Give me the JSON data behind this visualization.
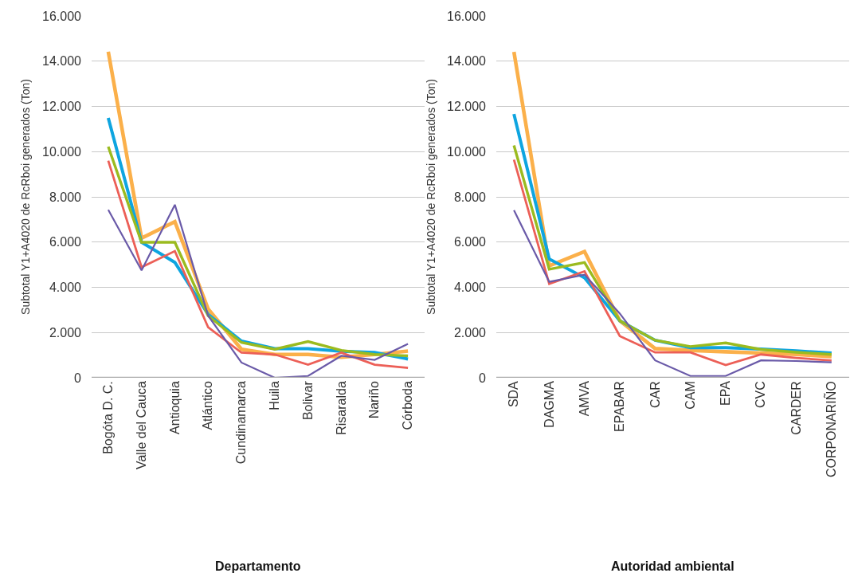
{
  "chart_data": [
    {
      "type": "line",
      "xlabel": "Departamento",
      "ylabel": "Subtotal Y1+A4020 de RcRboi generados (Ton)",
      "categories": [
        "Bogóta D. C.",
        "Valle del Cauca",
        "Antioquia",
        "Atlántico",
        "Cundinamarca",
        "Huila",
        "Bolivar",
        "Risaralda",
        "Nariño",
        "Córboda"
      ],
      "series": [
        {
          "color": "#fbb04a",
          "values": [
            14420,
            6170,
            6900,
            3040,
            1260,
            1030,
            1030,
            910,
            1030,
            1180
          ]
        },
        {
          "color": "#0ea5e0",
          "values": [
            11490,
            5990,
            5100,
            2800,
            1620,
            1290,
            1290,
            1170,
            1120,
            830
          ]
        },
        {
          "color": "#9bbb1f",
          "values": [
            10220,
            5990,
            5990,
            2740,
            1560,
            1260,
            1600,
            1210,
            1030,
            970
          ]
        },
        {
          "color": "#ec5f57",
          "values": [
            9600,
            4890,
            5600,
            2230,
            1110,
            1030,
            580,
            1110,
            580,
            440
          ]
        },
        {
          "color": "#6a5aa8",
          "values": [
            7430,
            4750,
            7650,
            2740,
            670,
            0,
            80,
            970,
            790,
            1500
          ]
        }
      ],
      "ylim": [
        0,
        16000
      ],
      "yticks": [
        {
          "value": 0,
          "label": "0"
        },
        {
          "value": 2000,
          "label": "2.000"
        },
        {
          "value": 4000,
          "label": "4.000"
        },
        {
          "value": 6000,
          "label": "6.000"
        },
        {
          "value": 8000,
          "label": "8.000"
        },
        {
          "value": 10000,
          "label": "10.000"
        },
        {
          "value": 12000,
          "label": "12.000"
        },
        {
          "value": 14000,
          "label": "14.000"
        },
        {
          "value": 16000,
          "label": "16.000"
        }
      ],
      "grid": "y",
      "marker": "none",
      "line_style": "solid"
    },
    {
      "type": "line",
      "xlabel": "Autoridad ambiental",
      "ylabel": "Subtotal Y1+A4020 de RcRboi generados (Ton)",
      "categories": [
        "SDA",
        "DAGMA",
        "AMVA",
        "EPABAR",
        "CAR",
        "CAM",
        "EPA",
        "CVC",
        "CARDER",
        "CORPONARIÑO"
      ],
      "series": [
        {
          "color": "#fbb04a",
          "values": [
            14410,
            4950,
            5580,
            2520,
            1290,
            1210,
            1150,
            1090,
            1030,
            940
          ]
        },
        {
          "color": "#0ea5e0",
          "values": [
            11660,
            5250,
            4420,
            2520,
            1660,
            1330,
            1330,
            1270,
            1190,
            1090
          ]
        },
        {
          "color": "#9bbb1f",
          "values": [
            10270,
            4800,
            5100,
            2520,
            1660,
            1380,
            1540,
            1250,
            1130,
            1030
          ]
        },
        {
          "color": "#ec5f57",
          "values": [
            9640,
            4150,
            4710,
            1840,
            1120,
            1120,
            560,
            1030,
            880,
            760
          ]
        },
        {
          "color": "#6a5aa8",
          "values": [
            7410,
            4240,
            4560,
            2840,
            770,
            80,
            80,
            770,
            740,
            680
          ]
        }
      ],
      "ylim": [
        0,
        16000
      ],
      "yticks": [
        {
          "value": 0,
          "label": "0"
        },
        {
          "value": 2000,
          "label": "2.000"
        },
        {
          "value": 4000,
          "label": "4.000"
        },
        {
          "value": 6000,
          "label": "6.000"
        },
        {
          "value": 8000,
          "label": "8.000"
        },
        {
          "value": 10000,
          "label": "10.000"
        },
        {
          "value": 12000,
          "label": "12.000"
        },
        {
          "value": 14000,
          "label": "14.000"
        },
        {
          "value": 16000,
          "label": "16.000"
        }
      ],
      "grid": "y",
      "marker": "none",
      "line_style": "solid"
    }
  ]
}
